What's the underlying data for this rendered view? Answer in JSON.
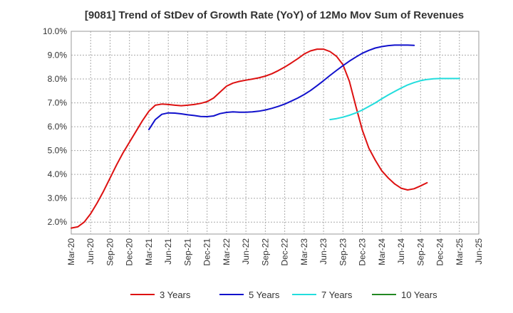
{
  "chart_data": {
    "type": "line",
    "title": "[9081]  Trend of StDev of Growth Rate (YoY) of 12Mo Mov Sum of Revenues",
    "xlabel": "",
    "ylabel": "",
    "ylim": [
      1.5,
      10.0
    ],
    "y_ticks": [
      "2.0%",
      "3.0%",
      "4.0%",
      "5.0%",
      "6.0%",
      "7.0%",
      "8.0%",
      "9.0%",
      "10.0%"
    ],
    "y_tick_values": [
      2,
      3,
      4,
      5,
      6,
      7,
      8,
      9,
      10
    ],
    "x_ticks": [
      "Mar-20",
      "Jun-20",
      "Sep-20",
      "Dec-20",
      "Mar-21",
      "Jun-21",
      "Sep-21",
      "Dec-21",
      "Mar-22",
      "Jun-22",
      "Sep-22",
      "Dec-22",
      "Mar-23",
      "Jun-23",
      "Sep-23",
      "Dec-23",
      "Mar-24",
      "Jun-24",
      "Sep-24",
      "Dec-24",
      "Mar-25",
      "Jun-25"
    ],
    "grid": true,
    "legend_position": "bottom",
    "series": [
      {
        "name": "3 Years",
        "color": "#dd1111",
        "start_index": 0,
        "values": [
          1.75,
          1.8,
          2.0,
          2.35,
          2.8,
          3.3,
          3.85,
          4.4,
          4.9,
          5.35,
          5.8,
          6.25,
          6.65,
          6.9,
          6.95,
          6.93,
          6.9,
          6.88,
          6.9,
          6.93,
          6.98,
          7.05,
          7.2,
          7.45,
          7.7,
          7.83,
          7.9,
          7.95,
          8.0,
          8.05,
          8.12,
          8.22,
          8.35,
          8.5,
          8.67,
          8.85,
          9.05,
          9.18,
          9.25,
          9.25,
          9.15,
          8.95,
          8.6,
          7.9,
          6.85,
          5.85,
          5.1,
          4.6,
          4.15,
          3.85,
          3.6,
          3.42,
          3.35,
          3.4,
          3.52,
          3.65
        ]
      },
      {
        "name": "5 Years",
        "color": "#1111cc",
        "start_index": 12,
        "values": [
          5.88,
          6.3,
          6.52,
          6.58,
          6.57,
          6.54,
          6.5,
          6.47,
          6.43,
          6.42,
          6.45,
          6.55,
          6.6,
          6.62,
          6.61,
          6.61,
          6.62,
          6.65,
          6.7,
          6.77,
          6.85,
          6.95,
          7.07,
          7.2,
          7.35,
          7.52,
          7.72,
          7.93,
          8.15,
          8.36,
          8.56,
          8.75,
          8.92,
          9.08,
          9.2,
          9.3,
          9.36,
          9.4,
          9.42,
          9.42,
          9.42,
          9.41
        ]
      },
      {
        "name": "7 Years",
        "color": "#22dddd",
        "start_index": 40,
        "values": [
          6.3,
          6.34,
          6.4,
          6.48,
          6.58,
          6.7,
          6.85,
          7.0,
          7.17,
          7.33,
          7.48,
          7.62,
          7.75,
          7.85,
          7.93,
          7.98,
          8.01,
          8.02,
          8.02,
          8.02,
          8.02
        ]
      },
      {
        "name": "10 Years",
        "color": "#228822",
        "start_index": 0,
        "values": []
      }
    ]
  }
}
